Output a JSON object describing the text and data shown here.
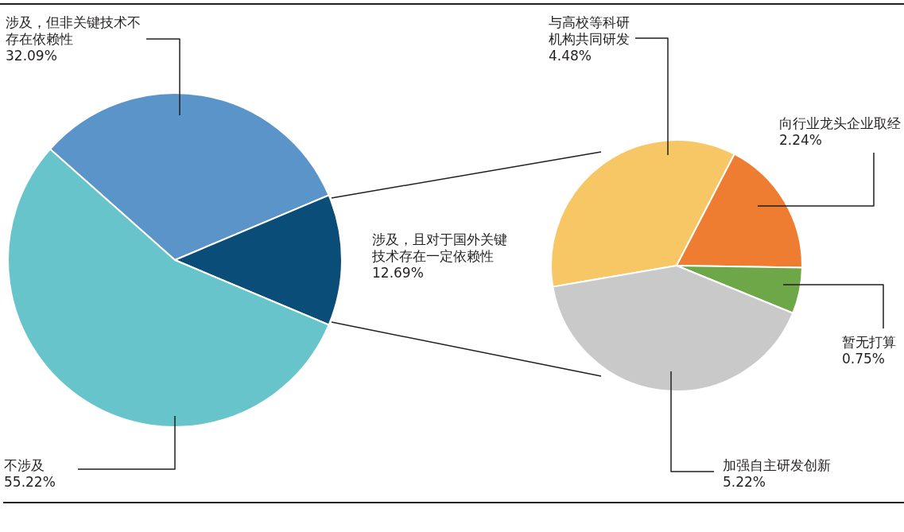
{
  "chart_data": [
    {
      "type": "pie",
      "categories": [
        "涉及，但非关键技术不存在依赖性",
        "涉及，且对于国外关键技术存在一定依赖性",
        "不涉及"
      ],
      "values": [
        32.09,
        12.69,
        55.22
      ],
      "colors": [
        "#5b94c8",
        "#0a4d78",
        "#67c4cb"
      ],
      "value_labels": [
        "32.09%",
        "12.69%",
        "55.22%"
      ]
    },
    {
      "type": "pie",
      "categories": [
        "与高校等科研机构共同研发",
        "向行业龙头企业取经",
        "暂无打算",
        "加强自主研发创新"
      ],
      "values": [
        4.48,
        2.24,
        0.75,
        5.22
      ],
      "colors": [
        "#f7c766",
        "#ee7d31",
        "#6ea748",
        "#c8c9c8"
      ],
      "value_labels": [
        "4.48%",
        "2.24%",
        "0.75%",
        "5.22%"
      ]
    }
  ]
}
